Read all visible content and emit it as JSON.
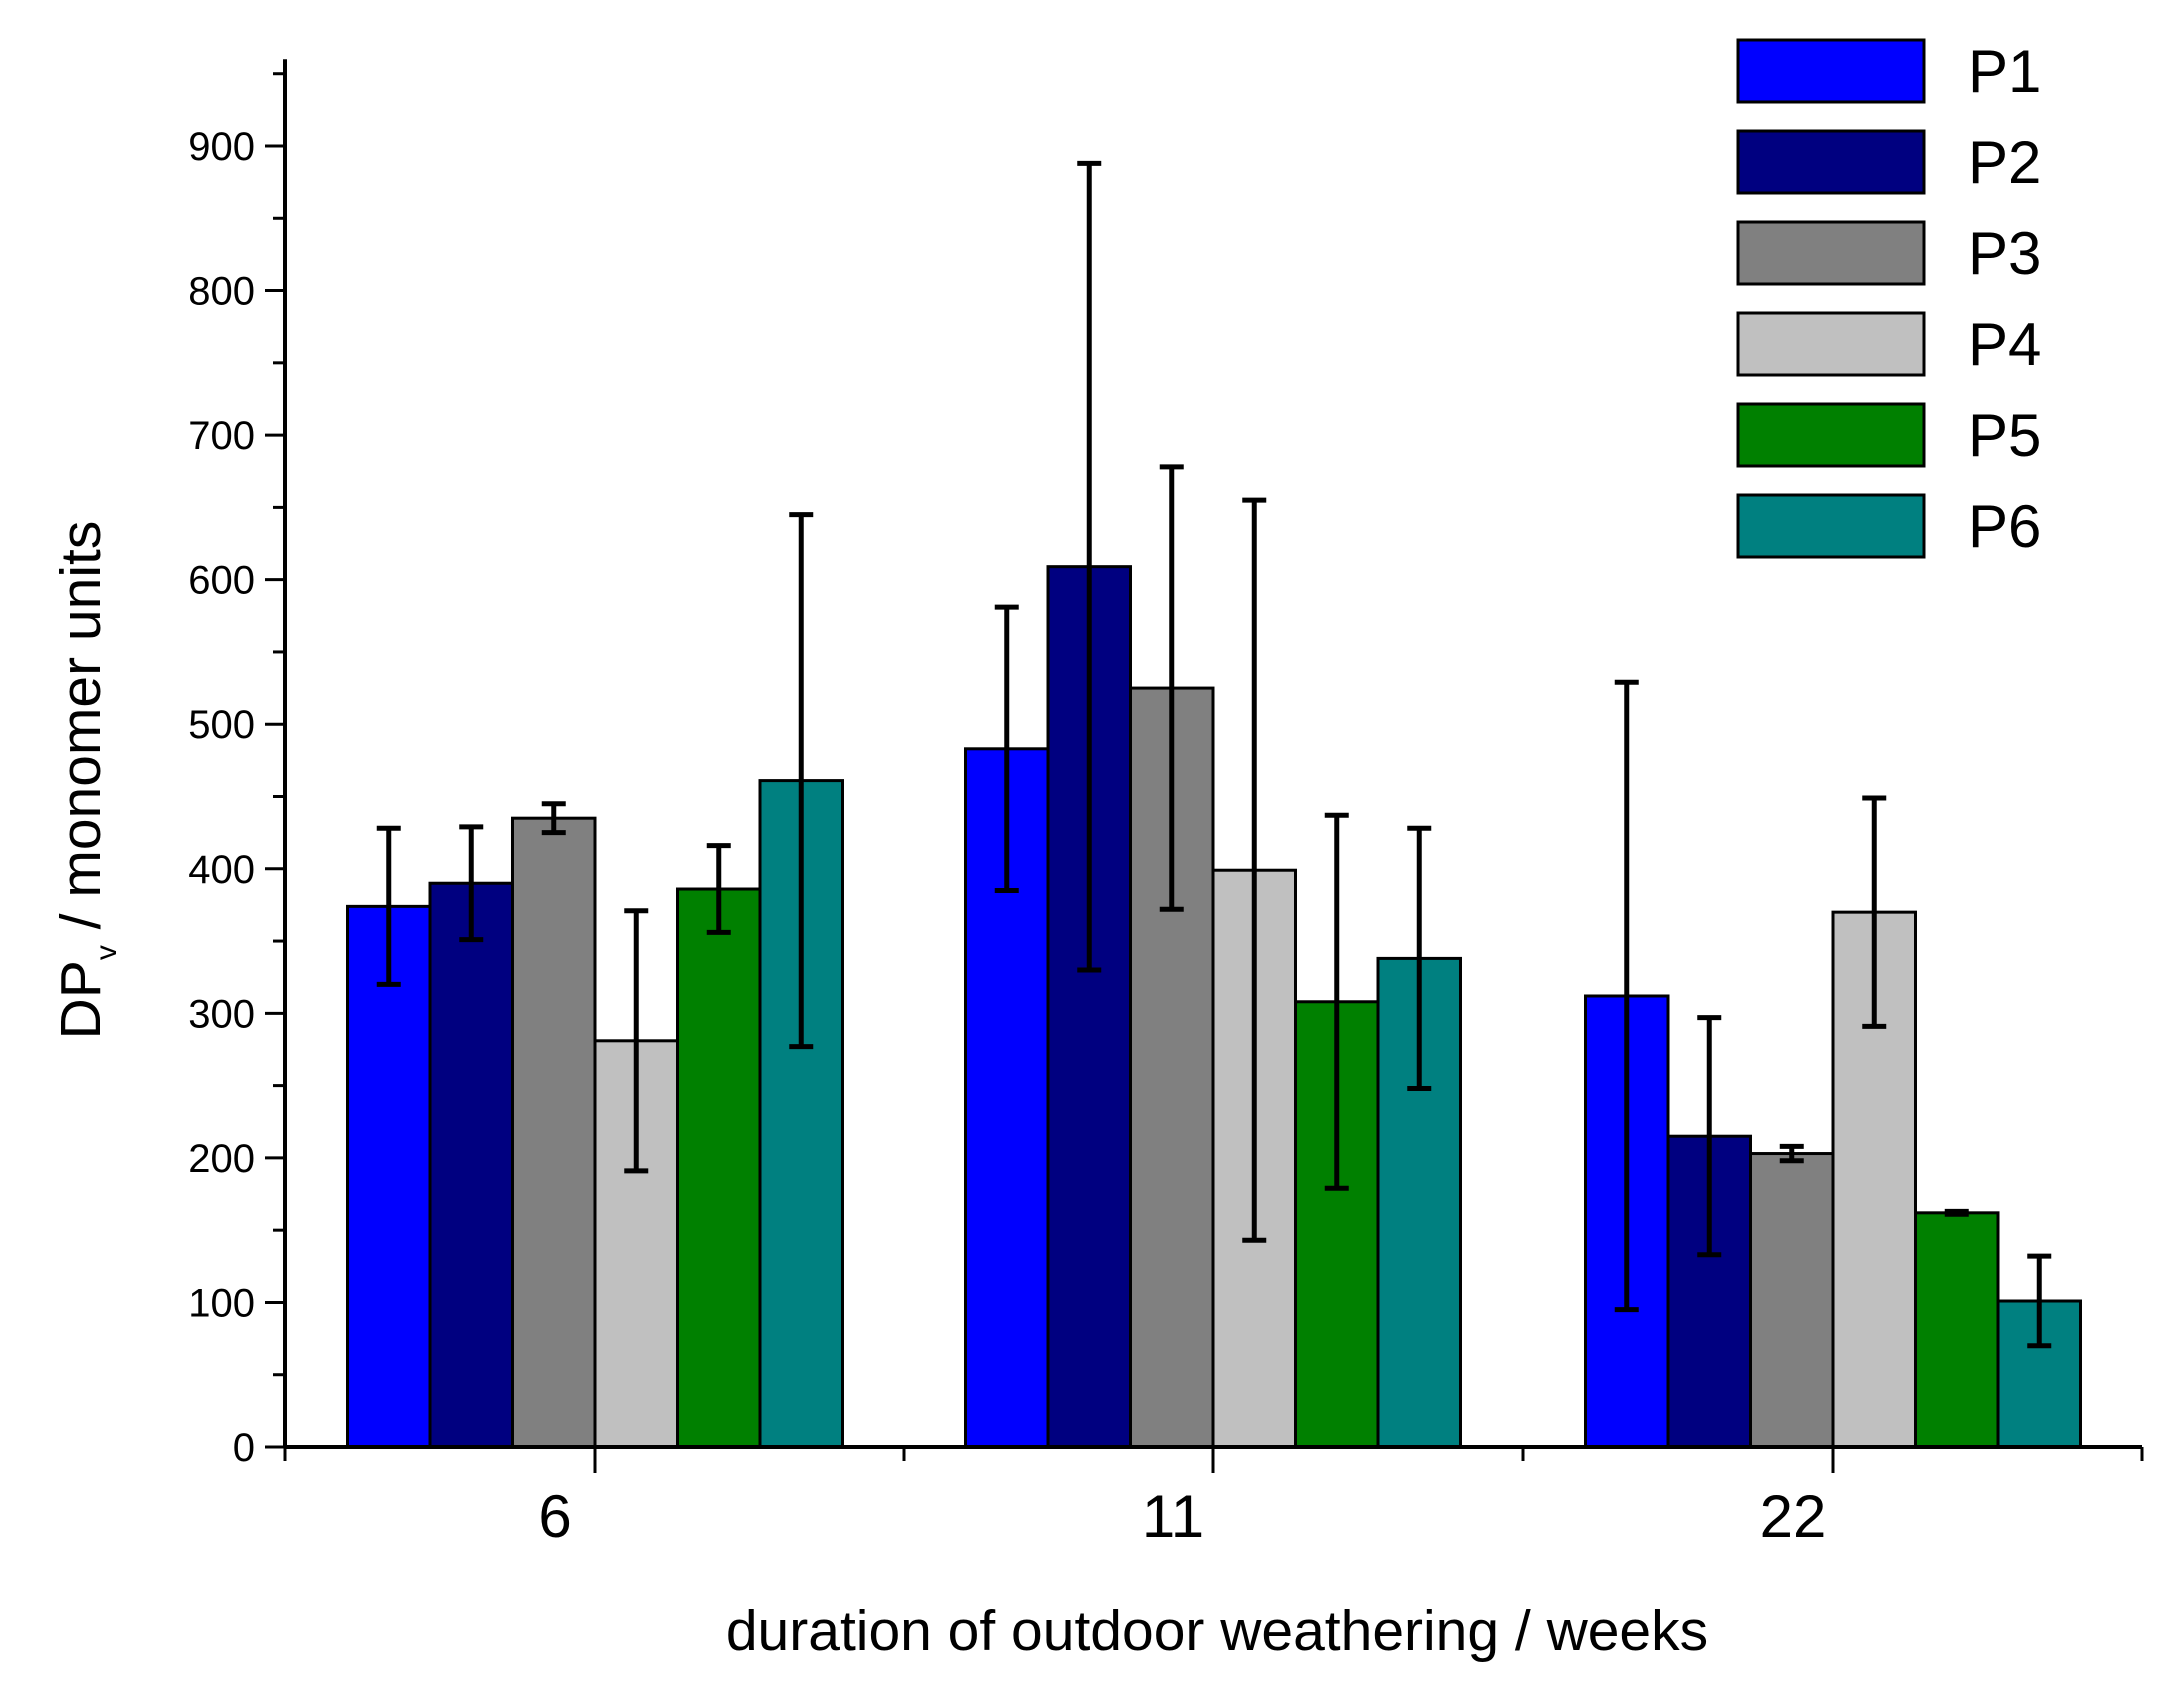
{
  "chart_data": {
    "type": "bar",
    "title": "",
    "categories": [
      "6",
      "11",
      "22"
    ],
    "xlabel": "duration of outdoor weathering / weeks",
    "ylabel": "DP",
    "ylabel_subscript": "v",
    "ylabel_suffix": " / monomer units",
    "ylim": [
      0,
      960
    ],
    "yticks": [
      0,
      100,
      200,
      300,
      400,
      500,
      600,
      700,
      800,
      900
    ],
    "legend_position": "top-right",
    "series": [
      {
        "name": "P1",
        "color": "#0000ff",
        "values": [
          374,
          483,
          312
        ],
        "errors": [
          54,
          98,
          217
        ]
      },
      {
        "name": "P2",
        "color": "#000080",
        "values": [
          390,
          609,
          215
        ],
        "errors": [
          39,
          279,
          82
        ]
      },
      {
        "name": "P3",
        "color": "#808080",
        "values": [
          435,
          525,
          203
        ],
        "errors": [
          10,
          153,
          5
        ]
      },
      {
        "name": "P4",
        "color": "#c0c0c0",
        "values": [
          281,
          399,
          370
        ],
        "errors": [
          90,
          256,
          79
        ]
      },
      {
        "name": "P5",
        "color": "#008000",
        "values": [
          386,
          308,
          162
        ],
        "errors": [
          30,
          129,
          1
        ]
      },
      {
        "name": "P6",
        "color": "#008080",
        "values": [
          461,
          338,
          101
        ],
        "errors": [
          184,
          90,
          31
        ]
      }
    ]
  }
}
